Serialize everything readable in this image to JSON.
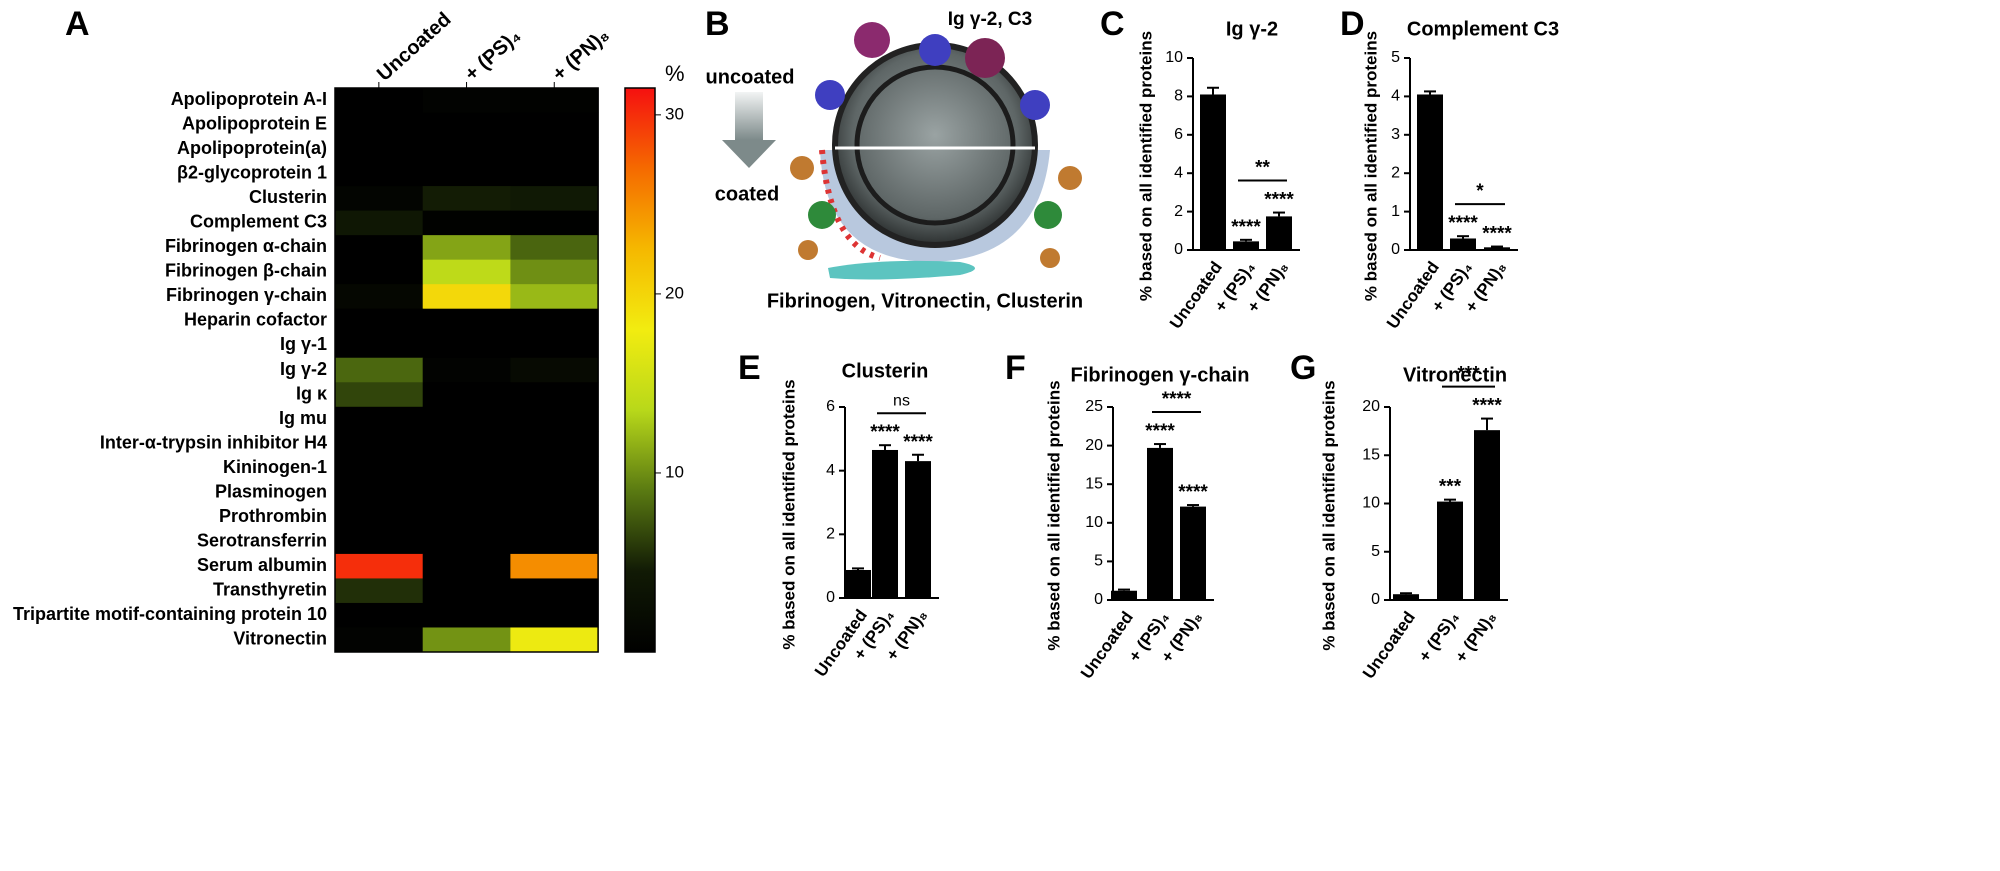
{
  "illustration": {
    "panel": "B",
    "top_label": "Ig γ-2, C3",
    "arrow_top": "uncoated",
    "arrow_bottom": "coated",
    "bottom_label": "Fibrinogen, Vitronectin, Clusterin"
  },
  "chart_data": [
    {
      "type": "heatmap",
      "panel": "A",
      "colorbar_label": "%",
      "columns": [
        "Uncoated",
        "+ (PS)₄",
        "+ (PN)₈"
      ],
      "rows": [
        "Apolipoprotein A-I",
        "Apolipoprotein E",
        "Apolipoprotein(a)",
        "β2-glycoprotein 1",
        "Clusterin",
        "Complement C3",
        "Fibrinogen α-chain",
        "Fibrinogen β-chain",
        "Fibrinogen γ-chain",
        "Heparin cofactor",
        "Ig γ-1",
        "Ig γ-2",
        "Ig κ",
        "Ig mu",
        "Inter-α-trypsin inhibitor H4",
        "Kininogen-1",
        "Plasminogen",
        "Prothrombin",
        "Serotransferrin",
        "Serum albumin",
        "Transthyretin",
        "Tripartite motif-containing protein 10",
        "Vitronectin"
      ],
      "values": [
        [
          0,
          0.5,
          0.3
        ],
        [
          0,
          0,
          0
        ],
        [
          0,
          0,
          0
        ],
        [
          0,
          0,
          0
        ],
        [
          0.9,
          4.6,
          4.3
        ],
        [
          4,
          0.3,
          0.1
        ],
        [
          0,
          11,
          8
        ],
        [
          0,
          14,
          10
        ],
        [
          1.2,
          19.7,
          12
        ],
        [
          0,
          0,
          0
        ],
        [
          0,
          0,
          0
        ],
        [
          8.1,
          0.5,
          1.8
        ],
        [
          6.5,
          0,
          0
        ],
        [
          0,
          0,
          0
        ],
        [
          0,
          0,
          0
        ],
        [
          0,
          0,
          0
        ],
        [
          0,
          0,
          0
        ],
        [
          0,
          0,
          0
        ],
        [
          0,
          0,
          0
        ],
        [
          30,
          0,
          25
        ],
        [
          5.5,
          0,
          0
        ],
        [
          0,
          0,
          0
        ],
        [
          0.6,
          10.2,
          17.6
        ]
      ],
      "zlim": [
        0,
        31.5
      ],
      "zticks": [
        10,
        20,
        30
      ],
      "colormap": [
        "#000000",
        "#111a05",
        "#5a7a12",
        "#b8d81a",
        "#f2ec10",
        "#f5b800",
        "#f56a00",
        "#f51010"
      ]
    },
    {
      "type": "bar",
      "panel": "C",
      "title": "Ig γ-2",
      "ylabel": "% based on all identified proteins",
      "categories": [
        "Uncoated",
        "+ (PS)₄",
        "+ (PN)₈"
      ],
      "values": [
        8.1,
        0.45,
        1.75
      ],
      "errors": [
        0.35,
        0.08,
        0.2
      ],
      "significance": [
        null,
        "****",
        "****"
      ],
      "bracket_label": "**",
      "color": "#000000",
      "ylim": [
        0,
        10
      ],
      "yticks": [
        0,
        2,
        4,
        6,
        8,
        10
      ]
    },
    {
      "type": "bar",
      "panel": "D",
      "title": "Complement C3",
      "ylabel": "% based on all identified proteins",
      "categories": [
        "Uncoated",
        "+ (PS)₄",
        "+ (PN)₈"
      ],
      "values": [
        4.05,
        0.3,
        0.07
      ],
      "errors": [
        0.08,
        0.06,
        0.02
      ],
      "significance": [
        null,
        "****",
        "****"
      ],
      "bracket_label": "*",
      "color": "#000000",
      "ylim": [
        0,
        5
      ],
      "yticks": [
        0,
        1,
        2,
        3,
        4,
        5
      ]
    },
    {
      "type": "bar",
      "panel": "E",
      "title": "Clusterin",
      "ylabel": "% based on all identified proteins",
      "categories": [
        "Uncoated",
        "+ (PS)₄",
        "+ (PN)₈"
      ],
      "values": [
        0.88,
        4.65,
        4.3
      ],
      "errors": [
        0.05,
        0.15,
        0.2
      ],
      "significance": [
        null,
        "****",
        "****"
      ],
      "bracket_label": "ns",
      "color": "#000000",
      "ylim": [
        0,
        6
      ],
      "yticks": [
        0,
        2,
        4,
        6
      ]
    },
    {
      "type": "bar",
      "panel": "F",
      "title": "Fibrinogen γ-chain",
      "ylabel": "% based on all identified proteins",
      "categories": [
        "Uncoated",
        "+ (PS)₄",
        "+ (PN)₈"
      ],
      "values": [
        1.2,
        19.7,
        12.1
      ],
      "errors": [
        0.15,
        0.5,
        0.2
      ],
      "significance": [
        null,
        "****",
        "****"
      ],
      "bracket_label": "****",
      "color": "#000000",
      "ylim": [
        0,
        25
      ],
      "yticks": [
        0,
        5,
        10,
        15,
        20,
        25
      ]
    },
    {
      "type": "bar",
      "panel": "G",
      "title": "Vitronectin",
      "ylabel": "% based on all identified proteins",
      "categories": [
        "Uncoated",
        "+ (PS)₄",
        "+ (PN)₈"
      ],
      "values": [
        0.6,
        10.2,
        17.6
      ],
      "errors": [
        0.1,
        0.2,
        1.2
      ],
      "significance": [
        null,
        "***",
        "****"
      ],
      "bracket_label": "***",
      "color": "#000000",
      "ylim": [
        0,
        20
      ],
      "yticks": [
        0,
        5,
        10,
        15,
        20
      ]
    }
  ]
}
